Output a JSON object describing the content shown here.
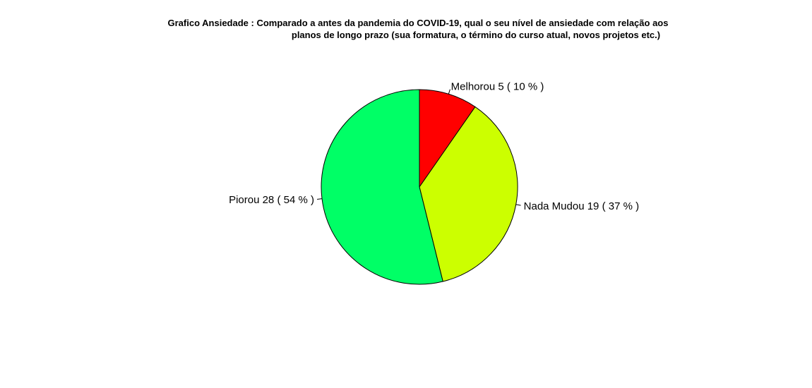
{
  "chart_data": {
    "type": "pie",
    "title_lines": [
      "Grafico Ansiedade : Comparado a antes da pandemia do COVID-19, qual o seu nível de ansiedade com relação aos",
      "planos de longo prazo (sua formatura, o término do curso atual, novos projetos etc.)"
    ],
    "slices": [
      {
        "category": "Melhorou",
        "value": 5,
        "percent": 10,
        "label": "Melhorou   5 ( 10 % )",
        "color": "#FF0000"
      },
      {
        "category": "Nada Mudou",
        "value": 19,
        "percent": 37,
        "label": "Nada Mudou   19 ( 37 % )",
        "color": "#CCFF00"
      },
      {
        "category": "Piorou",
        "value": 28,
        "percent": 54,
        "label": "Piorou   28 ( 54 % )",
        "color": "#00FF66"
      }
    ],
    "start_angle": "12 o'clock",
    "direction": "clockwise",
    "legend": "none"
  }
}
